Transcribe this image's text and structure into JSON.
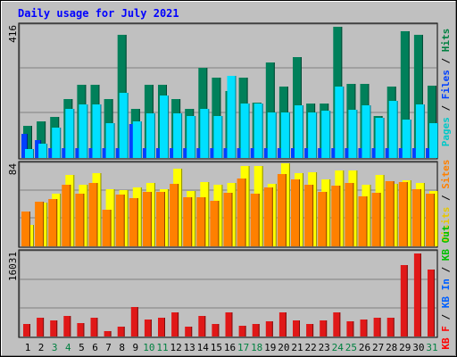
{
  "chart_data": [
    {
      "type": "bar",
      "title": "Daily usage for July 2021",
      "ymax_label": "416",
      "legend": [
        {
          "label": "Pages",
          "color": "#00c8c8"
        },
        {
          "label": "Files",
          "color": "#0040ff"
        },
        {
          "label": "Hits",
          "color": "#008040"
        }
      ],
      "categories": [
        "1",
        "2",
        "3",
        "4",
        "5",
        "6",
        "7",
        "8",
        "9",
        "10",
        "11",
        "12",
        "13",
        "14",
        "15",
        "16",
        "17",
        "18",
        "19",
        "20",
        "21",
        "22",
        "23",
        "24",
        "25",
        "26",
        "27",
        "28",
        "29",
        "30",
        "31"
      ],
      "weekend_days": [
        "3",
        "4",
        "10",
        "11",
        "17",
        "18",
        "24",
        "25",
        "31"
      ],
      "ylim": [
        0,
        416
      ],
      "series": [
        {
          "name": "Hits",
          "color": "#00805a",
          "values": [
            100,
            115,
            128,
            183,
            230,
            230,
            183,
            384,
            154,
            229,
            230,
            183,
            154,
            282,
            250,
            209,
            250,
            174,
            298,
            224,
            315,
            171,
            171,
            410,
            232,
            232,
            131,
            224,
            397,
            384,
            226
          ]
        },
        {
          "name": "Files",
          "color": "#0040ff",
          "values": [
            75,
            57,
            32,
            32,
            32,
            32,
            32,
            32,
            107,
            32,
            32,
            32,
            32,
            32,
            32,
            32,
            32,
            32,
            32,
            32,
            32,
            32,
            32,
            32,
            32,
            32,
            32,
            32,
            32,
            32,
            32
          ]
        },
        {
          "name": "Pages",
          "color": "#00e0ff",
          "values": [
            28,
            45,
            95,
            154,
            167,
            167,
            108,
            203,
            115,
            140,
            196,
            140,
            131,
            154,
            131,
            257,
            171,
            171,
            141,
            141,
            164,
            141,
            147,
            224,
            151,
            164,
            125,
            180,
            120,
            167,
            110
          ]
        }
      ]
    },
    {
      "type": "bar",
      "ymax_label": "84",
      "legend": [
        {
          "label": "Visits",
          "color": "#e6c800"
        },
        {
          "label": "Sites",
          "color": "#ff8000"
        }
      ],
      "categories": [
        "1",
        "2",
        "3",
        "4",
        "5",
        "6",
        "7",
        "8",
        "9",
        "10",
        "11",
        "12",
        "13",
        "14",
        "15",
        "16",
        "17",
        "18",
        "19",
        "20",
        "21",
        "22",
        "23",
        "24",
        "25",
        "26",
        "27",
        "28",
        "29",
        "30",
        "31"
      ],
      "ylim": [
        0,
        84
      ],
      "series": [
        {
          "name": "Visits",
          "color": "#ffff00",
          "values": [
            22,
            44,
            53,
            72,
            62,
            74,
            58,
            57,
            60,
            64,
            58,
            79,
            56,
            65,
            62,
            64,
            81,
            81,
            63,
            84,
            74,
            75,
            68,
            77,
            77,
            62,
            72,
            63,
            67,
            64,
            56
          ]
        },
        {
          "name": "Sites",
          "color": "#ff8000",
          "values": [
            35,
            45,
            48,
            62,
            53,
            64,
            37,
            52,
            49,
            55,
            55,
            63,
            50,
            50,
            46,
            54,
            69,
            53,
            60,
            73,
            68,
            62,
            55,
            61,
            64,
            51,
            54,
            66,
            65,
            58,
            53
          ]
        }
      ]
    },
    {
      "type": "bar",
      "ymax_label": "16031",
      "legend": [
        {
          "label": "KB F",
          "color": "#ff0000"
        },
        {
          "label": "KB In",
          "color": "#0060ff"
        },
        {
          "label": "KB Out",
          "color": "#00c000"
        }
      ],
      "categories": [
        "1",
        "2",
        "3",
        "4",
        "5",
        "6",
        "7",
        "8",
        "9",
        "10",
        "11",
        "12",
        "13",
        "14",
        "15",
        "16",
        "17",
        "18",
        "19",
        "20",
        "21",
        "22",
        "23",
        "24",
        "25",
        "26",
        "27",
        "28",
        "29",
        "30",
        "31"
      ],
      "ylim": [
        0,
        16031
      ],
      "series": [
        {
          "name": "KB F",
          "color": "#e01818",
          "values": [
            2400,
            3600,
            3100,
            3800,
            2600,
            3600,
            1000,
            1900,
            5600,
            3200,
            3600,
            4600,
            1900,
            3800,
            2400,
            4600,
            2000,
            2400,
            2900,
            4600,
            3000,
            2400,
            3000,
            4600,
            2900,
            3200,
            3600,
            3600,
            13500,
            15700,
            12700
          ]
        }
      ]
    }
  ]
}
